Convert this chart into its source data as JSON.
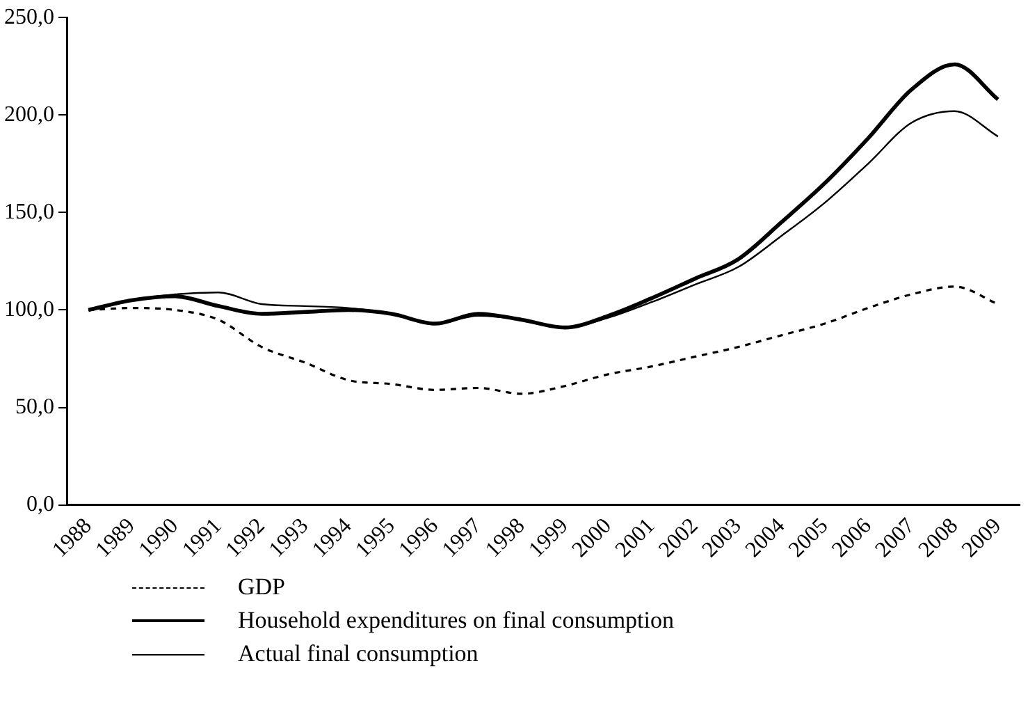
{
  "chart_data": {
    "type": "line",
    "categories": [
      "1988",
      "1989",
      "1990",
      "1991",
      "1992",
      "1993",
      "1994",
      "1995",
      "1996",
      "1997",
      "1998",
      "1999",
      "2000",
      "2001",
      "2002",
      "2003",
      "2004",
      "2005",
      "2006",
      "2007",
      "2008",
      "2009"
    ],
    "series": [
      {
        "name": "GDP",
        "color": "#000000",
        "line_style": "dashed",
        "values": [
          100,
          101,
          100,
          95,
          81,
          73,
          64,
          62,
          59,
          60,
          57,
          61,
          67,
          71,
          76,
          81,
          87,
          93,
          101,
          108,
          112,
          103
        ]
      },
      {
        "name": "Household expenditures on final consumption",
        "color": "#000000",
        "line_style": "solid",
        "values": [
          100,
          105,
          107,
          102,
          98,
          99,
          100,
          98,
          93,
          98,
          95,
          91,
          97,
          106,
          116,
          126,
          145,
          165,
          188,
          213,
          226,
          208
        ]
      },
      {
        "name": "Actual final consumption",
        "color": "#000000",
        "line_style": "solid",
        "values": [
          100,
          105,
          108,
          109,
          103,
          102,
          101,
          98,
          93,
          97,
          95,
          91,
          96,
          104,
          113,
          122,
          138,
          155,
          175,
          196,
          202,
          189
        ]
      }
    ],
    "ylim": [
      0,
      250
    ],
    "yticks": [
      {
        "value": 0,
        "label": "0,0"
      },
      {
        "value": 50,
        "label": "50,0"
      },
      {
        "value": 100,
        "label": "100,0"
      },
      {
        "value": 150,
        "label": "150,0"
      },
      {
        "value": 200,
        "label": "200,0"
      },
      {
        "value": 250,
        "label": "250,0"
      }
    ],
    "grid": false,
    "legend": "bottom",
    "marker": "none"
  }
}
